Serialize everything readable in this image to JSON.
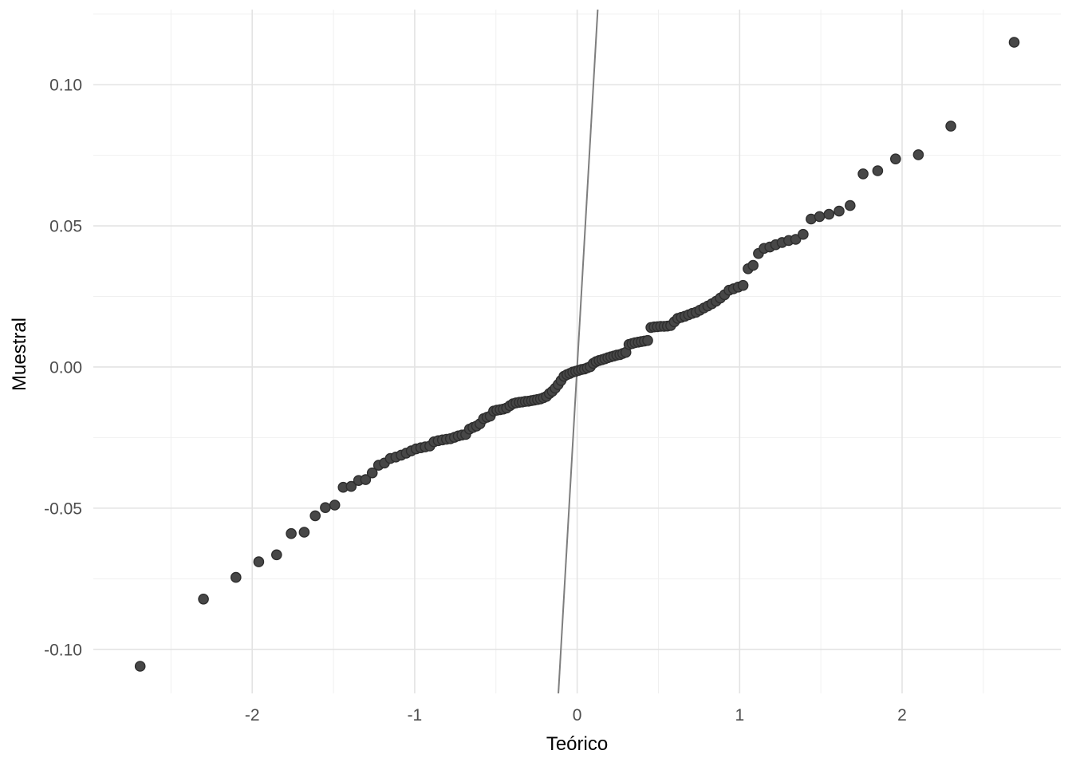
{
  "figure": {
    "kind": "ggplot-qq-plot",
    "background": "#FFFFFF"
  },
  "colors": {
    "background": "#FFFFFF",
    "grid_major": "#E3E3E3",
    "grid_minor": "#F0F0F0",
    "point_fill": "#474747",
    "point_stroke": "#2E2E2E",
    "reference_line": "#7E7E7E",
    "tick_label": "#4D4D4D",
    "axis_title": "#000000"
  },
  "chart_data": {
    "type": "scatter",
    "subtype": "qq-plot",
    "title": "",
    "xlabel": "Teórico",
    "ylabel": "Muestral",
    "grid": true,
    "legend": false,
    "x_domain": [
      -2.978,
      2.977
    ],
    "y_domain": [
      -0.1156,
      0.1266
    ],
    "x_ticks": {
      "values": [
        -2,
        -1,
        0,
        1,
        2
      ],
      "labels": [
        "-2",
        "-1",
        "0",
        "1",
        "2"
      ]
    },
    "y_ticks": {
      "values": [
        0.1,
        0.05,
        0.0,
        -0.05,
        -0.1
      ],
      "labels": [
        "0.10",
        "0.05",
        "0.00",
        "-0.05",
        "-0.10"
      ]
    },
    "x_minor_ticks": [
      -2.5,
      -1.5,
      -0.5,
      0.5,
      1.5,
      2.5
    ],
    "y_minor_ticks": [
      0.125,
      0.075,
      0.025,
      -0.025,
      -0.075
    ],
    "reference_line": {
      "type": "identity",
      "intercept": 0,
      "slope": 1
    },
    "n_points": 140,
    "points": [
      [
        -2.69,
        -0.106
      ],
      [
        -2.3,
        -0.0822
      ],
      [
        -2.1,
        -0.0745
      ],
      [
        -1.96,
        -0.069
      ],
      [
        -1.85,
        -0.0665
      ],
      [
        -1.76,
        -0.059
      ],
      [
        -1.68,
        -0.0585
      ],
      [
        -1.612,
        -0.0527
      ],
      [
        -1.55,
        -0.0498
      ],
      [
        -1.492,
        -0.0489
      ],
      [
        -1.44,
        -0.0426
      ],
      [
        -1.391,
        -0.0423
      ],
      [
        -1.345,
        -0.0402
      ],
      [
        -1.302,
        -0.0399
      ],
      [
        -1.261,
        -0.0375
      ],
      [
        -1.222,
        -0.0348
      ],
      [
        -1.186,
        -0.034
      ],
      [
        -1.15,
        -0.0324
      ],
      [
        -1.116,
        -0.0319
      ],
      [
        -1.083,
        -0.0312
      ],
      [
        -1.052,
        -0.0305
      ],
      [
        -1.021,
        -0.0297
      ],
      [
        -0.991,
        -0.029
      ],
      [
        -0.962,
        -0.0286
      ],
      [
        -0.935,
        -0.0283
      ],
      [
        -0.907,
        -0.028
      ],
      [
        -0.881,
        -0.0265
      ],
      [
        -0.855,
        -0.0261
      ],
      [
        -0.829,
        -0.0258
      ],
      [
        -0.804,
        -0.0256
      ],
      [
        -0.78,
        -0.0254
      ],
      [
        -0.755,
        -0.0249
      ],
      [
        -0.732,
        -0.0244
      ],
      [
        -0.709,
        -0.0241
      ],
      [
        -0.686,
        -0.0239
      ],
      [
        -0.663,
        -0.022
      ],
      [
        -0.641,
        -0.0214
      ],
      [
        -0.619,
        -0.0209
      ],
      [
        -0.598,
        -0.0201
      ],
      [
        -0.576,
        -0.0183
      ],
      [
        -0.555,
        -0.0178
      ],
      [
        -0.535,
        -0.0174
      ],
      [
        -0.514,
        -0.0156
      ],
      [
        -0.494,
        -0.0153
      ],
      [
        -0.474,
        -0.0151
      ],
      [
        -0.454,
        -0.0149
      ],
      [
        -0.434,
        -0.0145
      ],
      [
        -0.414,
        -0.0137
      ],
      [
        -0.395,
        -0.013
      ],
      [
        -0.376,
        -0.0127
      ],
      [
        -0.356,
        -0.0125
      ],
      [
        -0.338,
        -0.0124
      ],
      [
        -0.319,
        -0.0122
      ],
      [
        -0.3,
        -0.0121
      ],
      [
        -0.281,
        -0.0119
      ],
      [
        -0.263,
        -0.0117
      ],
      [
        -0.244,
        -0.0115
      ],
      [
        -0.226,
        -0.0113
      ],
      [
        -0.207,
        -0.0109
      ],
      [
        -0.189,
        -0.0104
      ],
      [
        -0.171,
        -0.0094
      ],
      [
        -0.153,
        -0.0086
      ],
      [
        -0.135,
        -0.0075
      ],
      [
        -0.117,
        -0.0062
      ],
      [
        -0.099,
        -0.0048
      ],
      [
        -0.081,
        -0.0033
      ],
      [
        -0.063,
        -0.0027
      ],
      [
        -0.045,
        -0.0023
      ],
      [
        -0.027,
        -0.0018
      ],
      [
        -0.009,
        -0.0015
      ],
      [
        0.009,
        -0.0012
      ],
      [
        0.027,
        -0.0009
      ],
      [
        0.045,
        -0.0007
      ],
      [
        0.063,
        -0.0003
      ],
      [
        0.081,
        0.0001
      ],
      [
        0.099,
        0.0013
      ],
      [
        0.117,
        0.0019
      ],
      [
        0.135,
        0.0023
      ],
      [
        0.153,
        0.0026
      ],
      [
        0.171,
        0.0029
      ],
      [
        0.189,
        0.0033
      ],
      [
        0.207,
        0.0036
      ],
      [
        0.226,
        0.0039
      ],
      [
        0.244,
        0.0042
      ],
      [
        0.263,
        0.0044
      ],
      [
        0.281,
        0.0048
      ],
      [
        0.3,
        0.0052
      ],
      [
        0.319,
        0.008
      ],
      [
        0.338,
        0.0083
      ],
      [
        0.356,
        0.0086
      ],
      [
        0.376,
        0.0088
      ],
      [
        0.395,
        0.009
      ],
      [
        0.414,
        0.0092
      ],
      [
        0.434,
        0.0094
      ],
      [
        0.454,
        0.014
      ],
      [
        0.474,
        0.0142
      ],
      [
        0.494,
        0.0143
      ],
      [
        0.514,
        0.0144
      ],
      [
        0.535,
        0.0144
      ],
      [
        0.555,
        0.0145
      ],
      [
        0.576,
        0.0147
      ],
      [
        0.598,
        0.016
      ],
      [
        0.619,
        0.0172
      ],
      [
        0.641,
        0.0176
      ],
      [
        0.663,
        0.018
      ],
      [
        0.686,
        0.0185
      ],
      [
        0.709,
        0.019
      ],
      [
        0.732,
        0.0194
      ],
      [
        0.755,
        0.0201
      ],
      [
        0.78,
        0.0209
      ],
      [
        0.804,
        0.0216
      ],
      [
        0.829,
        0.0224
      ],
      [
        0.855,
        0.0233
      ],
      [
        0.881,
        0.0244
      ],
      [
        0.907,
        0.0256
      ],
      [
        0.935,
        0.0272
      ],
      [
        0.962,
        0.0277
      ],
      [
        0.991,
        0.0283
      ],
      [
        1.021,
        0.0289
      ],
      [
        1.052,
        0.0348
      ],
      [
        1.083,
        0.036
      ],
      [
        1.116,
        0.0402
      ],
      [
        1.15,
        0.042
      ],
      [
        1.186,
        0.0425
      ],
      [
        1.222,
        0.0433
      ],
      [
        1.261,
        0.0441
      ],
      [
        1.302,
        0.0448
      ],
      [
        1.345,
        0.0452
      ],
      [
        1.391,
        0.047
      ],
      [
        1.44,
        0.0524
      ],
      [
        1.492,
        0.0533
      ],
      [
        1.55,
        0.0541
      ],
      [
        1.612,
        0.0552
      ],
      [
        1.68,
        0.0572
      ],
      [
        1.76,
        0.0684
      ],
      [
        1.85,
        0.0695
      ],
      [
        1.96,
        0.0737
      ],
      [
        2.1,
        0.0752
      ],
      [
        2.3,
        0.0853
      ],
      [
        2.69,
        0.115
      ]
    ]
  }
}
